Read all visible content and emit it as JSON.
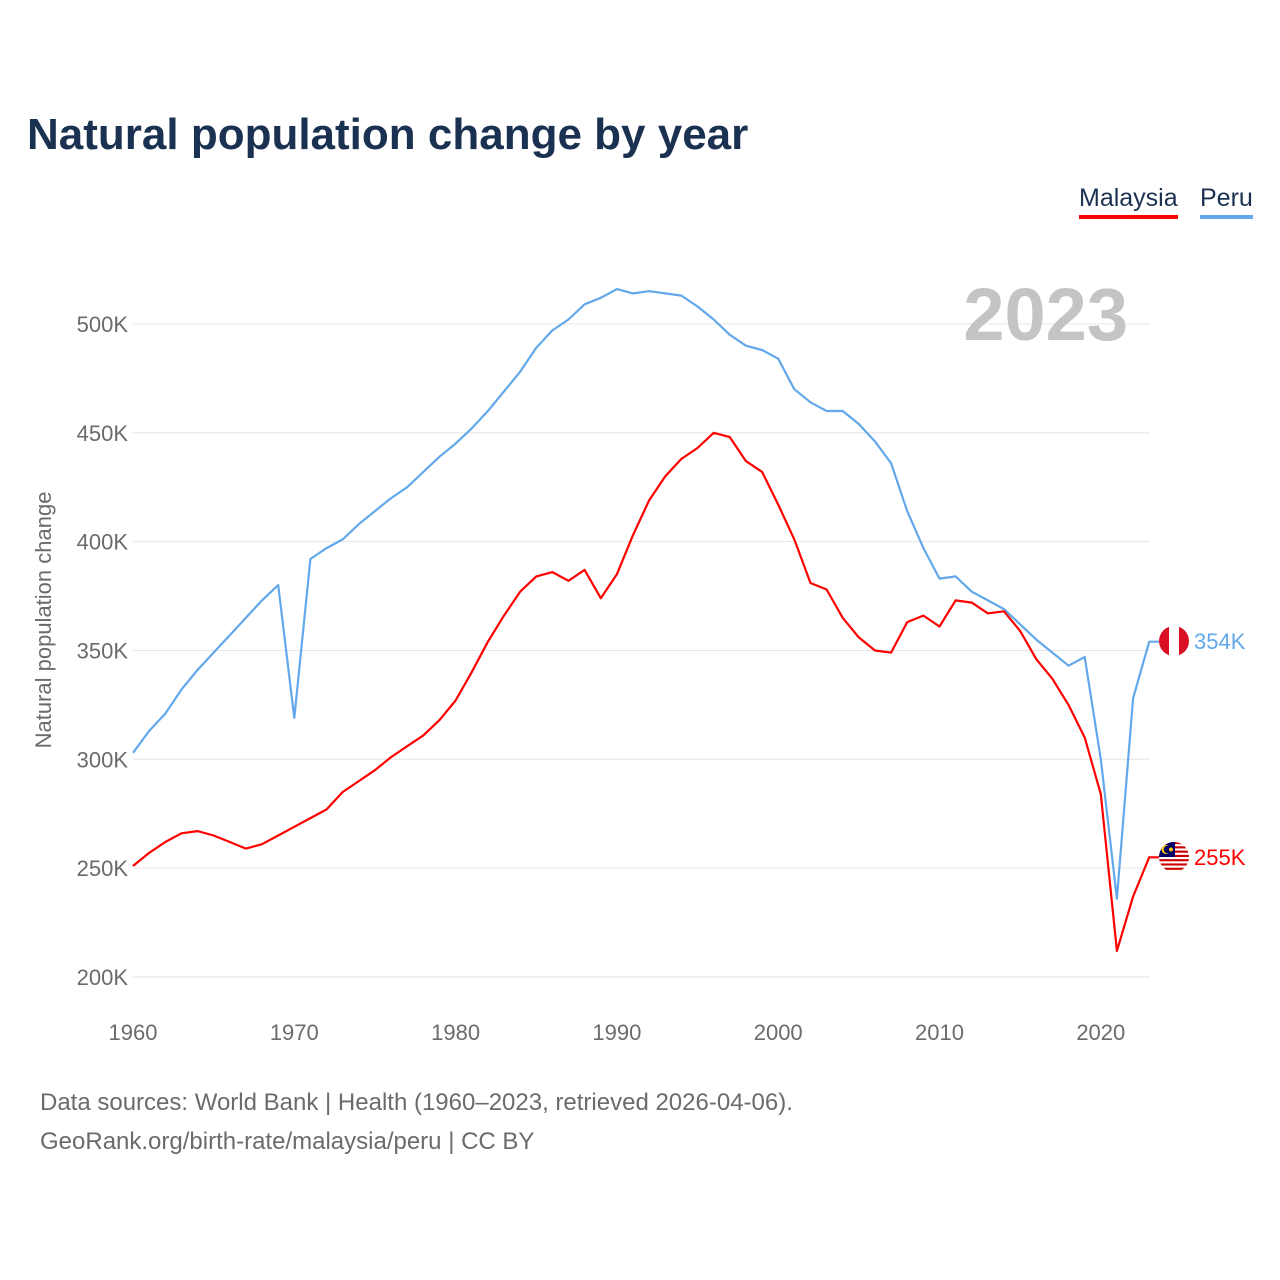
{
  "title": "Natural population change by year",
  "legend": [
    "Malaysia",
    "Peru"
  ],
  "year_label": "2023",
  "sources": {
    "line1": "Data sources: World Bank | Health (1960–2023, retrieved 2026-04-06).",
    "line2": "GeoRank.org/birth-rate/malaysia/peru | CC BY"
  },
  "chart_data": {
    "type": "line",
    "title": "Natural population change by year",
    "xlabel": "",
    "ylabel": "Natural population change",
    "xlim": [
      1960,
      2023
    ],
    "ylim": [
      200,
      520
    ],
    "y_unit": "thousands",
    "x_ticks": [
      "1960",
      "1970",
      "1980",
      "1990",
      "2000",
      "2010",
      "2020"
    ],
    "y_ticks": [
      "200K",
      "250K",
      "300K",
      "350K",
      "400K",
      "450K",
      "500K"
    ],
    "grid": true,
    "legend_position": "top-right",
    "x": [
      1960,
      1961,
      1962,
      1963,
      1964,
      1965,
      1966,
      1967,
      1968,
      1969,
      1970,
      1971,
      1972,
      1973,
      1974,
      1975,
      1976,
      1977,
      1978,
      1979,
      1980,
      1981,
      1982,
      1983,
      1984,
      1985,
      1986,
      1987,
      1988,
      1989,
      1990,
      1991,
      1992,
      1993,
      1994,
      1995,
      1996,
      1997,
      1998,
      1999,
      2000,
      2001,
      2002,
      2003,
      2004,
      2005,
      2006,
      2007,
      2008,
      2009,
      2010,
      2011,
      2012,
      2013,
      2014,
      2015,
      2016,
      2017,
      2018,
      2019,
      2020,
      2021,
      2022,
      2023
    ],
    "series": [
      {
        "name": "Malaysia",
        "color": "#ff0000",
        "end_label": "255K",
        "values": [
          251,
          257,
          262,
          266,
          267,
          265,
          262,
          259,
          261,
          265,
          269,
          273,
          277,
          285,
          290,
          295,
          301,
          306,
          311,
          318,
          327,
          340,
          354,
          366,
          377,
          384,
          386,
          382,
          387,
          374,
          385,
          403,
          419,
          430,
          438,
          443,
          450,
          448,
          437,
          432,
          417,
          401,
          381,
          378,
          365,
          356,
          350,
          349,
          363,
          366,
          361,
          373,
          372,
          367,
          368,
          359,
          346,
          337,
          325,
          310,
          284,
          212,
          237,
          255
        ]
      },
      {
        "name": "Peru",
        "color": "#62a8ea",
        "end_label": "354K",
        "values": [
          303,
          313,
          321,
          332,
          341,
          349,
          357,
          365,
          373,
          380,
          319,
          392,
          397,
          401,
          408,
          414,
          420,
          425,
          432,
          439,
          445,
          452,
          460,
          469,
          478,
          489,
          497,
          502,
          509,
          512,
          516,
          514,
          515,
          514,
          513,
          508,
          502,
          495,
          490,
          488,
          484,
          470,
          464,
          460,
          460,
          454,
          446,
          436,
          414,
          397,
          383,
          384,
          377,
          373,
          369,
          362,
          355,
          349,
          343,
          347,
          300,
          236,
          328,
          354
        ]
      }
    ]
  }
}
